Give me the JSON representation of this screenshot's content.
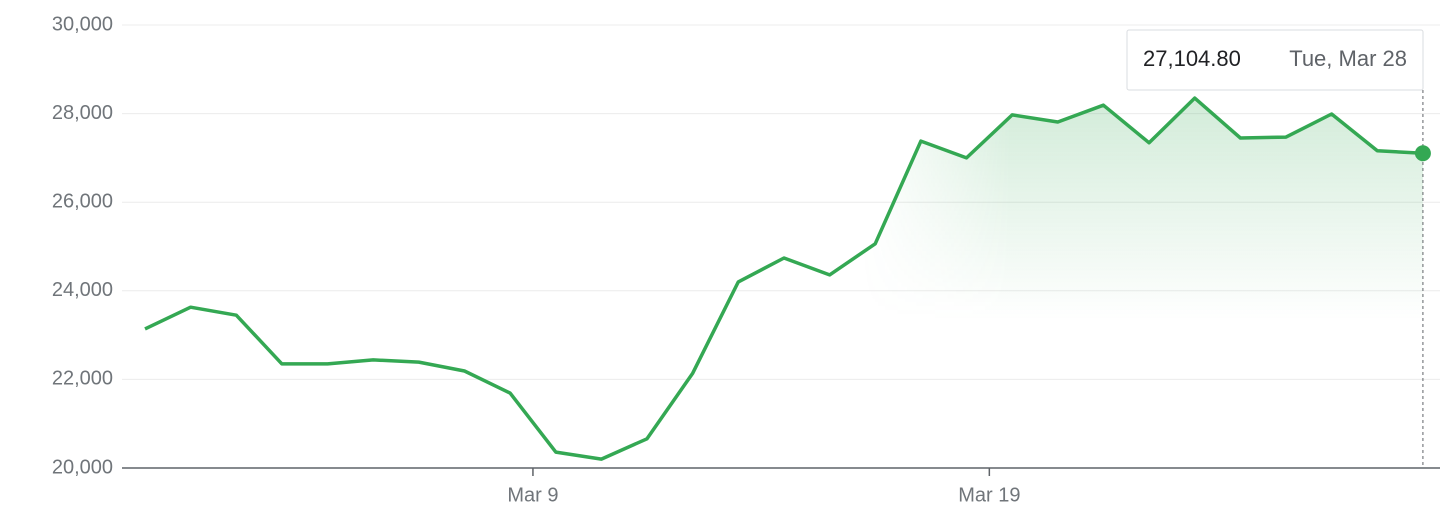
{
  "chart_data": {
    "type": "line",
    "values": [
      23140,
      23630,
      23450,
      22350,
      22350,
      22440,
      22390,
      22190,
      21690,
      20360,
      20200,
      20660,
      22140,
      24200,
      24740,
      24360,
      25060,
      27380,
      27000,
      27970,
      27810,
      28190,
      27340,
      28350,
      27450,
      27470,
      27990,
      27160,
      27104.8
    ],
    "color": "#34a853",
    "ylim": [
      20000,
      30000
    ],
    "yticks": [
      {
        "value": 20000,
        "label": "20,000"
      },
      {
        "value": 22000,
        "label": "22,000"
      },
      {
        "value": 24000,
        "label": "24,000"
      },
      {
        "value": 26000,
        "label": "26,000"
      },
      {
        "value": 28000,
        "label": "28,000"
      },
      {
        "value": 30000,
        "label": "30,000"
      }
    ],
    "xlim": [
      -0.5,
      28.4
    ],
    "xticks": [
      {
        "value": 8.5,
        "label": "Mar 9"
      },
      {
        "value": 18.5,
        "label": "Mar 19"
      }
    ],
    "grid": true,
    "tooltip": {
      "label": "27,104.80",
      "date": "Tue, Mar 28"
    }
  }
}
